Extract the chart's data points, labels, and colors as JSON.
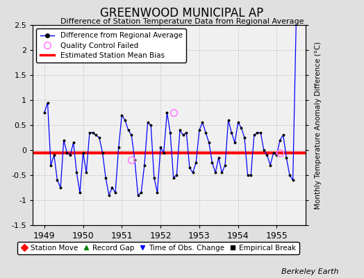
{
  "title": "GREENWOOD MUNICIPAL AP",
  "subtitle": "Difference of Station Temperature Data from Regional Average",
  "ylabel": "Monthly Temperature Anomaly Difference (°C)",
  "bias_value": -0.05,
  "ylim": [
    -1.5,
    2.5
  ],
  "xlim": [
    1948.7,
    1955.75
  ],
  "xticks": [
    1949,
    1950,
    1951,
    1952,
    1953,
    1954,
    1955
  ],
  "yticks_left": [
    -1.5,
    -1.0,
    -0.5,
    0.0,
    0.5,
    1.0,
    1.5,
    2.0,
    2.5
  ],
  "ytick_labels_left": [
    "-1.5",
    "-1",
    "-0.5",
    "0",
    "0.5",
    "1",
    "1.5",
    "2",
    "2.5"
  ],
  "line_color": "blue",
  "marker_color": "black",
  "bias_color": "red",
  "qc_fail_color": "#ff80ff",
  "fig_bg_color": "#e0e0e0",
  "plot_bg_color": "#f0f0f0",
  "footer_text": "Berkeley Earth",
  "data_x": [
    1949.0,
    1949.083,
    1949.167,
    1949.25,
    1949.333,
    1949.417,
    1949.5,
    1949.583,
    1949.667,
    1949.75,
    1949.833,
    1949.917,
    1950.0,
    1950.083,
    1950.167,
    1950.25,
    1950.333,
    1950.417,
    1950.5,
    1950.583,
    1950.667,
    1950.75,
    1950.833,
    1950.917,
    1951.0,
    1951.083,
    1951.167,
    1951.25,
    1951.333,
    1951.417,
    1951.5,
    1951.583,
    1951.667,
    1951.75,
    1951.833,
    1951.917,
    1952.0,
    1952.083,
    1952.167,
    1952.25,
    1952.333,
    1952.417,
    1952.5,
    1952.583,
    1952.667,
    1952.75,
    1952.833,
    1952.917,
    1953.0,
    1953.083,
    1953.167,
    1953.25,
    1953.333,
    1953.417,
    1953.5,
    1953.583,
    1953.667,
    1953.75,
    1953.833,
    1953.917,
    1954.0,
    1954.083,
    1954.167,
    1954.25,
    1954.333,
    1954.417,
    1954.5,
    1954.583,
    1954.667,
    1954.75,
    1954.833,
    1954.917,
    1955.0,
    1955.083,
    1955.167,
    1955.25,
    1955.333,
    1955.417,
    1955.5
  ],
  "data_y": [
    0.75,
    0.95,
    -0.3,
    -0.1,
    -0.6,
    -0.75,
    0.2,
    -0.05,
    -0.1,
    0.15,
    -0.45,
    -0.85,
    -0.05,
    -0.45,
    0.35,
    0.35,
    0.3,
    0.25,
    -0.05,
    -0.55,
    -0.9,
    -0.75,
    -0.85,
    0.05,
    0.7,
    0.6,
    0.4,
    0.3,
    -0.2,
    -0.9,
    -0.85,
    -0.3,
    0.55,
    0.5,
    -0.55,
    -0.85,
    0.05,
    -0.05,
    0.75,
    0.35,
    -0.55,
    -0.5,
    0.4,
    0.3,
    0.35,
    -0.35,
    -0.45,
    -0.25,
    0.4,
    0.55,
    0.35,
    0.15,
    -0.25,
    -0.45,
    -0.15,
    -0.45,
    -0.3,
    0.6,
    0.35,
    0.15,
    0.55,
    0.45,
    0.25,
    -0.5,
    -0.5,
    0.3,
    0.35,
    0.35,
    0.0,
    -0.1,
    -0.3,
    -0.05,
    -0.1,
    0.2,
    0.3,
    -0.15,
    -0.5,
    -0.6,
    2.5
  ],
  "qc_fail_points": [
    [
      1951.25,
      -0.2
    ],
    [
      1952.333,
      0.75
    ],
    [
      1955.083,
      -0.05
    ]
  ],
  "legend1_items": [
    {
      "label": "Difference from Regional Average",
      "color": "blue",
      "type": "line_marker"
    },
    {
      "label": "Quality Control Failed",
      "color": "#ff80ff",
      "type": "circle_open"
    },
    {
      "label": "Estimated Station Mean Bias",
      "color": "red",
      "type": "line"
    }
  ],
  "legend2_items": [
    {
      "label": "Station Move",
      "color": "red",
      "marker": "D"
    },
    {
      "label": "Record Gap",
      "color": "green",
      "marker": "^"
    },
    {
      "label": "Time of Obs. Change",
      "color": "blue",
      "marker": "v"
    },
    {
      "label": "Empirical Break",
      "color": "black",
      "marker": "s"
    }
  ]
}
